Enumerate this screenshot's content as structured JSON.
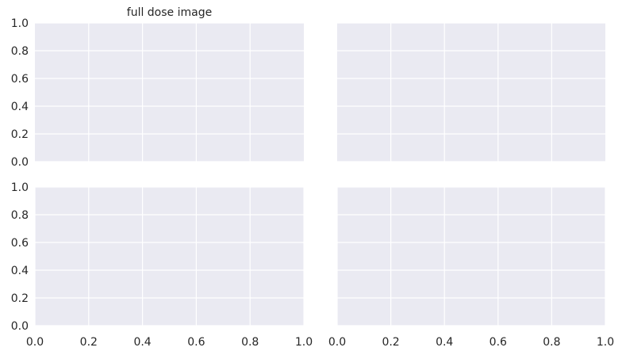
{
  "chart_data": [
    {
      "type": "line",
      "title": "full dose image",
      "xlabel": "",
      "ylabel": "",
      "xlim": [
        0,
        1
      ],
      "ylim": [
        0,
        1
      ],
      "xticks": [
        0.2,
        0.4,
        0.6,
        0.8
      ],
      "yticks": [
        0.0,
        0.2,
        0.4,
        0.6,
        0.8,
        1.0
      ],
      "xtick_labels": [],
      "ytick_labels": [
        "0.0",
        "0.2",
        "0.4",
        "0.6",
        "0.8",
        "1.0"
      ],
      "series": [],
      "grid": true
    },
    {
      "type": "line",
      "title": "",
      "xlabel": "",
      "ylabel": "",
      "xlim": [
        0,
        1
      ],
      "ylim": [
        0,
        1
      ],
      "xticks": [
        0.2,
        0.4,
        0.6,
        0.8
      ],
      "yticks": [
        0.0,
        0.2,
        0.4,
        0.6,
        0.8,
        1.0
      ],
      "xtick_labels": [],
      "ytick_labels": [],
      "series": [],
      "grid": true
    },
    {
      "type": "line",
      "title": "",
      "xlabel": "",
      "ylabel": "",
      "xlim": [
        0,
        1
      ],
      "ylim": [
        0,
        1
      ],
      "xticks": [
        0.0,
        0.2,
        0.4,
        0.6,
        0.8,
        1.0
      ],
      "yticks": [
        0.0,
        0.2,
        0.4,
        0.6,
        0.8,
        1.0
      ],
      "xtick_labels": [
        "0.0",
        "0.2",
        "0.4",
        "0.6",
        "0.8",
        "1.0"
      ],
      "ytick_labels": [
        "0.0",
        "0.2",
        "0.4",
        "0.6",
        "0.8",
        "1.0"
      ],
      "series": [],
      "grid": true
    },
    {
      "type": "line",
      "title": "",
      "xlabel": "",
      "ylabel": "",
      "xlim": [
        0,
        1
      ],
      "ylim": [
        0,
        1
      ],
      "xticks": [
        0.0,
        0.2,
        0.4,
        0.6,
        0.8,
        1.0
      ],
      "yticks": [
        0.0,
        0.2,
        0.4,
        0.6,
        0.8,
        1.0
      ],
      "xtick_labels": [
        "0.0",
        "0.2",
        "0.4",
        "0.6",
        "0.8",
        "1.0"
      ],
      "ytick_labels": [],
      "series": [],
      "grid": true
    }
  ],
  "colors": {
    "axes_face": "#eaeaf2",
    "grid": "#ffffff",
    "text": "#262626",
    "background": "#ffffff"
  }
}
